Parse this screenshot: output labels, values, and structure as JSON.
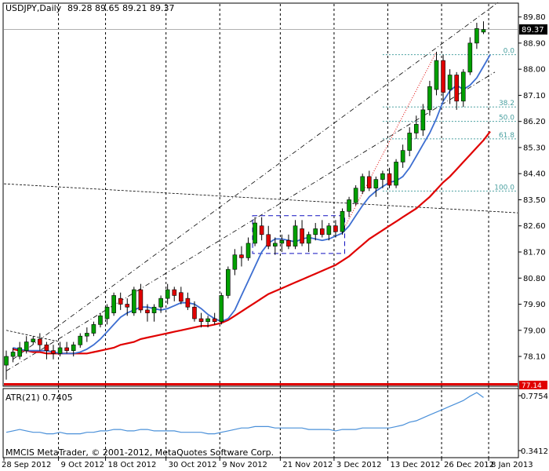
{
  "header": {
    "symbol": "USDJPY,Daily",
    "ohlc": "89.28 89.65 89.21 89.37"
  },
  "indicator": {
    "label": "ATR(21) 0.7405",
    "scale_top": "0.7754",
    "scale_bottom": "0.3412"
  },
  "copyright": "MMCIS MetaTrader, © 2001-2012, MetaQuotes Software Corp.",
  "colors": {
    "bull": "#00a000",
    "bear": "#e00000",
    "ma_fast": "#3d6ed1",
    "ma_slow": "#e00000",
    "atr": "#4a90d9",
    "fib": "#4aa0a0",
    "support_line": "#e00000"
  },
  "chart_data": {
    "type": "candlestick",
    "ylim": [
      77.1,
      90.25
    ],
    "yticks": [
      "89.80",
      "88.90",
      "88.00",
      "87.10",
      "86.20",
      "85.30",
      "84.40",
      "83.50",
      "82.60",
      "81.70",
      "80.80",
      "79.90",
      "79.00",
      "78.10"
    ],
    "current_price": "89.37",
    "support_price": "77.14",
    "xticks": [
      "28 Sep 2012",
      "9 Oct 2012",
      "18 Oct 2012",
      "30 Oct 2012",
      "9 Nov 2012",
      "21 Nov 2012",
      "3 Dec 2012",
      "13 Dec 2012",
      "26 Dec 2012",
      "8 Jan 2013"
    ],
    "fib_levels": [
      {
        "label": "0.0",
        "value": 88.5
      },
      {
        "label": "38.2",
        "value": 86.7
      },
      {
        "label": "50.0",
        "value": 86.2
      },
      {
        "label": "61.8",
        "value": 85.6
      },
      {
        "label": "100.0",
        "value": 83.8
      }
    ],
    "candles": [
      {
        "o": 77.8,
        "h": 78.3,
        "l": 77.3,
        "c": 78.1
      },
      {
        "o": 78.1,
        "h": 78.4,
        "l": 77.9,
        "c": 78.25
      },
      {
        "o": 78.1,
        "h": 78.6,
        "l": 78.0,
        "c": 78.4
      },
      {
        "o": 78.3,
        "h": 78.8,
        "l": 78.2,
        "c": 78.6
      },
      {
        "o": 78.6,
        "h": 78.8,
        "l": 78.5,
        "c": 78.7
      },
      {
        "o": 78.7,
        "h": 78.9,
        "l": 78.3,
        "c": 78.5
      },
      {
        "o": 78.5,
        "h": 78.6,
        "l": 78.0,
        "c": 78.3
      },
      {
        "o": 78.3,
        "h": 78.5,
        "l": 78.0,
        "c": 78.2
      },
      {
        "o": 78.2,
        "h": 78.6,
        "l": 78.1,
        "c": 78.4
      },
      {
        "o": 78.4,
        "h": 78.6,
        "l": 78.2,
        "c": 78.3
      },
      {
        "o": 78.3,
        "h": 78.6,
        "l": 78.1,
        "c": 78.5
      },
      {
        "o": 78.5,
        "h": 78.9,
        "l": 78.4,
        "c": 78.8
      },
      {
        "o": 78.8,
        "h": 79.1,
        "l": 78.6,
        "c": 78.9
      },
      {
        "o": 78.9,
        "h": 79.3,
        "l": 78.8,
        "c": 79.2
      },
      {
        "o": 79.2,
        "h": 79.6,
        "l": 79.1,
        "c": 79.5
      },
      {
        "o": 79.4,
        "h": 79.9,
        "l": 79.2,
        "c": 79.8
      },
      {
        "o": 79.6,
        "h": 80.3,
        "l": 79.5,
        "c": 80.2
      },
      {
        "o": 80.1,
        "h": 80.3,
        "l": 79.7,
        "c": 79.9
      },
      {
        "o": 79.9,
        "h": 80.1,
        "l": 79.5,
        "c": 79.8
      },
      {
        "o": 79.6,
        "h": 80.5,
        "l": 79.5,
        "c": 80.4
      },
      {
        "o": 80.4,
        "h": 80.6,
        "l": 79.6,
        "c": 79.7
      },
      {
        "o": 79.7,
        "h": 79.9,
        "l": 79.3,
        "c": 79.6
      },
      {
        "o": 79.6,
        "h": 79.9,
        "l": 79.3,
        "c": 79.8
      },
      {
        "o": 79.8,
        "h": 80.2,
        "l": 79.6,
        "c": 80.1
      },
      {
        "o": 80.1,
        "h": 80.6,
        "l": 79.9,
        "c": 80.4
      },
      {
        "o": 80.4,
        "h": 80.5,
        "l": 80.0,
        "c": 80.2
      },
      {
        "o": 80.3,
        "h": 80.5,
        "l": 79.9,
        "c": 80.0
      },
      {
        "o": 80.1,
        "h": 80.3,
        "l": 79.7,
        "c": 79.8
      },
      {
        "o": 79.8,
        "h": 80.0,
        "l": 79.3,
        "c": 79.4
      },
      {
        "o": 79.4,
        "h": 79.6,
        "l": 79.1,
        "c": 79.3
      },
      {
        "o": 79.3,
        "h": 79.5,
        "l": 79.1,
        "c": 79.4
      },
      {
        "o": 79.4,
        "h": 79.6,
        "l": 79.2,
        "c": 79.3
      },
      {
        "o": 79.3,
        "h": 80.3,
        "l": 79.2,
        "c": 80.2
      },
      {
        "o": 80.2,
        "h": 81.2,
        "l": 80.1,
        "c": 81.1
      },
      {
        "o": 81.1,
        "h": 81.8,
        "l": 80.9,
        "c": 81.6
      },
      {
        "o": 81.6,
        "h": 81.9,
        "l": 81.2,
        "c": 81.5
      },
      {
        "o": 81.5,
        "h": 82.2,
        "l": 81.4,
        "c": 82.0
      },
      {
        "o": 82.0,
        "h": 82.9,
        "l": 81.9,
        "c": 82.7
      },
      {
        "o": 82.6,
        "h": 82.9,
        "l": 82.1,
        "c": 82.3
      },
      {
        "o": 82.3,
        "h": 82.6,
        "l": 81.8,
        "c": 81.9
      },
      {
        "o": 81.9,
        "h": 82.2,
        "l": 81.6,
        "c": 82.0
      },
      {
        "o": 82.0,
        "h": 82.3,
        "l": 81.7,
        "c": 82.1
      },
      {
        "o": 82.1,
        "h": 82.3,
        "l": 81.8,
        "c": 81.9
      },
      {
        "o": 81.9,
        "h": 82.8,
        "l": 81.8,
        "c": 82.6
      },
      {
        "o": 82.5,
        "h": 82.8,
        "l": 81.9,
        "c": 82.0
      },
      {
        "o": 82.0,
        "h": 82.4,
        "l": 81.7,
        "c": 82.3
      },
      {
        "o": 82.3,
        "h": 82.7,
        "l": 82.1,
        "c": 82.5
      },
      {
        "o": 82.5,
        "h": 82.8,
        "l": 82.2,
        "c": 82.3
      },
      {
        "o": 82.3,
        "h": 82.7,
        "l": 82.1,
        "c": 82.6
      },
      {
        "o": 82.6,
        "h": 82.8,
        "l": 82.2,
        "c": 82.4
      },
      {
        "o": 82.4,
        "h": 83.2,
        "l": 82.3,
        "c": 83.1
      },
      {
        "o": 83.1,
        "h": 83.6,
        "l": 82.9,
        "c": 83.5
      },
      {
        "o": 83.4,
        "h": 84.0,
        "l": 83.3,
        "c": 83.9
      },
      {
        "o": 83.8,
        "h": 84.4,
        "l": 83.7,
        "c": 84.3
      },
      {
        "o": 84.3,
        "h": 84.5,
        "l": 83.8,
        "c": 83.9
      },
      {
        "o": 83.9,
        "h": 84.3,
        "l": 83.6,
        "c": 84.2
      },
      {
        "o": 84.2,
        "h": 84.5,
        "l": 83.9,
        "c": 84.4
      },
      {
        "o": 84.4,
        "h": 84.6,
        "l": 83.9,
        "c": 84.0
      },
      {
        "o": 84.0,
        "h": 84.9,
        "l": 83.9,
        "c": 84.8
      },
      {
        "o": 84.8,
        "h": 85.4,
        "l": 84.6,
        "c": 85.2
      },
      {
        "o": 85.2,
        "h": 86.0,
        "l": 85.0,
        "c": 85.8
      },
      {
        "o": 85.8,
        "h": 86.4,
        "l": 85.6,
        "c": 86.1
      },
      {
        "o": 85.9,
        "h": 86.8,
        "l": 85.7,
        "c": 86.6
      },
      {
        "o": 86.6,
        "h": 87.6,
        "l": 86.4,
        "c": 87.4
      },
      {
        "o": 87.3,
        "h": 88.6,
        "l": 87.1,
        "c": 88.3
      },
      {
        "o": 88.3,
        "h": 88.5,
        "l": 86.9,
        "c": 87.2
      },
      {
        "o": 87.3,
        "h": 88.0,
        "l": 86.8,
        "c": 87.8
      },
      {
        "o": 87.8,
        "h": 87.9,
        "l": 86.6,
        "c": 86.9
      },
      {
        "o": 86.9,
        "h": 88.0,
        "l": 86.7,
        "c": 87.9
      },
      {
        "o": 87.9,
        "h": 89.1,
        "l": 87.8,
        "c": 88.9
      },
      {
        "o": 88.9,
        "h": 89.6,
        "l": 88.7,
        "c": 89.4
      },
      {
        "o": 89.28,
        "h": 89.65,
        "l": 89.21,
        "c": 89.37
      }
    ],
    "ma_fast": [
      78.4,
      78.35,
      78.3,
      78.3,
      78.3,
      78.3,
      78.25,
      78.2,
      78.2,
      78.2,
      78.25,
      78.35,
      78.5,
      78.7,
      78.95,
      79.2,
      79.45,
      79.6,
      79.7,
      79.8,
      79.8,
      79.75,
      79.7,
      79.75,
      79.85,
      79.95,
      79.95,
      79.9,
      79.75,
      79.55,
      79.4,
      79.3,
      79.4,
      79.7,
      80.2,
      80.7,
      81.2,
      81.7,
      82.0,
      82.15,
      82.15,
      82.1,
      82.05,
      82.15,
      82.2,
      82.15,
      82.1,
      82.15,
      82.25,
      82.35,
      82.6,
      82.95,
      83.3,
      83.6,
      83.8,
      83.95,
      84.1,
      84.15,
      84.3,
      84.6,
      85.0,
      85.4,
      85.8,
      86.3,
      86.9,
      87.25,
      87.45,
      87.3,
      87.45,
      87.7,
      88.1,
      88.5
    ],
    "ma_slow": [
      78.35,
      78.3,
      78.3,
      78.25,
      78.25,
      78.2,
      78.2,
      78.2,
      78.2,
      78.2,
      78.2,
      78.2,
      78.25,
      78.3,
      78.35,
      78.4,
      78.5,
      78.55,
      78.6,
      78.7,
      78.75,
      78.8,
      78.85,
      78.9,
      78.95,
      79.0,
      79.05,
      79.1,
      79.15,
      79.15,
      79.2,
      79.25,
      79.35,
      79.5,
      79.65,
      79.8,
      79.95,
      80.1,
      80.25,
      80.35,
      80.45,
      80.55,
      80.65,
      80.75,
      80.85,
      80.95,
      81.05,
      81.15,
      81.25,
      81.4,
      81.55,
      81.75,
      81.95,
      82.15,
      82.3,
      82.45,
      82.6,
      82.75,
      82.9,
      83.05,
      83.2,
      83.4,
      83.6,
      83.85,
      84.1,
      84.3,
      84.55,
      84.8,
      85.05,
      85.3,
      85.55,
      85.85
    ],
    "atr": [
      0.5,
      0.51,
      0.52,
      0.51,
      0.5,
      0.5,
      0.49,
      0.49,
      0.5,
      0.49,
      0.49,
      0.49,
      0.5,
      0.5,
      0.51,
      0.51,
      0.52,
      0.52,
      0.51,
      0.51,
      0.52,
      0.52,
      0.51,
      0.51,
      0.51,
      0.51,
      0.5,
      0.5,
      0.5,
      0.5,
      0.49,
      0.49,
      0.5,
      0.51,
      0.52,
      0.53,
      0.53,
      0.54,
      0.54,
      0.54,
      0.53,
      0.53,
      0.53,
      0.53,
      0.53,
      0.52,
      0.52,
      0.52,
      0.52,
      0.51,
      0.52,
      0.52,
      0.52,
      0.53,
      0.53,
      0.53,
      0.53,
      0.53,
      0.54,
      0.55,
      0.57,
      0.58,
      0.6,
      0.62,
      0.64,
      0.66,
      0.68,
      0.7,
      0.72,
      0.75,
      0.775,
      0.7405
    ]
  }
}
